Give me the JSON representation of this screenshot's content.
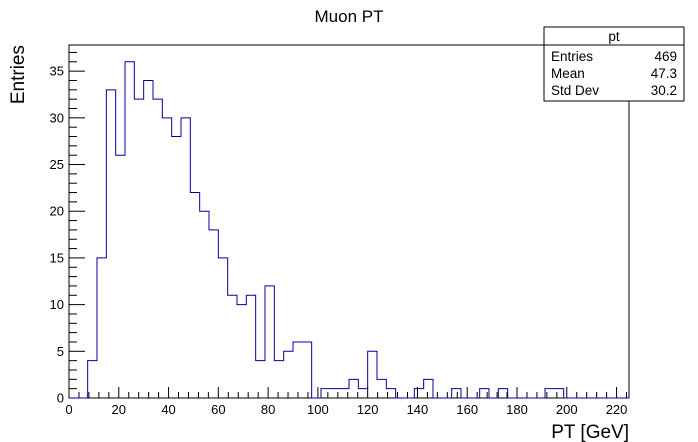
{
  "chart_data": {
    "type": "histogram",
    "title": "Muon PT",
    "xlabel": "PT [GeV]",
    "ylabel": "Entries",
    "xlim": [
      0,
      225
    ],
    "ylim": [
      0,
      37.8
    ],
    "bin_width": 3.75,
    "bin_start": 0,
    "counts": [
      0,
      0,
      4,
      15,
      33,
      26,
      36,
      32,
      34,
      32,
      30,
      28,
      30,
      22,
      20,
      18,
      15,
      11,
      10,
      11,
      4,
      12,
      4,
      5,
      6,
      6,
      0,
      1,
      1,
      1,
      2,
      1,
      5,
      2,
      1,
      0,
      0,
      1,
      2,
      0,
      0,
      1,
      0,
      0,
      1,
      0,
      1,
      0,
      0,
      0,
      0,
      1,
      1,
      0,
      0,
      0,
      0,
      0,
      0,
      0
    ],
    "x_ticks": [
      0,
      20,
      40,
      60,
      80,
      100,
      120,
      140,
      160,
      180,
      200,
      220
    ],
    "y_ticks": [
      0,
      5,
      10,
      15,
      20,
      25,
      30,
      35
    ],
    "line_color": "#000099",
    "stats_box": {
      "name": "pt",
      "rows": [
        {
          "label": "Entries",
          "value": "469"
        },
        {
          "label": "Mean",
          "value": "47.3"
        },
        {
          "label": "Std Dev",
          "value": "30.2"
        }
      ],
      "placement": "top-right"
    }
  }
}
